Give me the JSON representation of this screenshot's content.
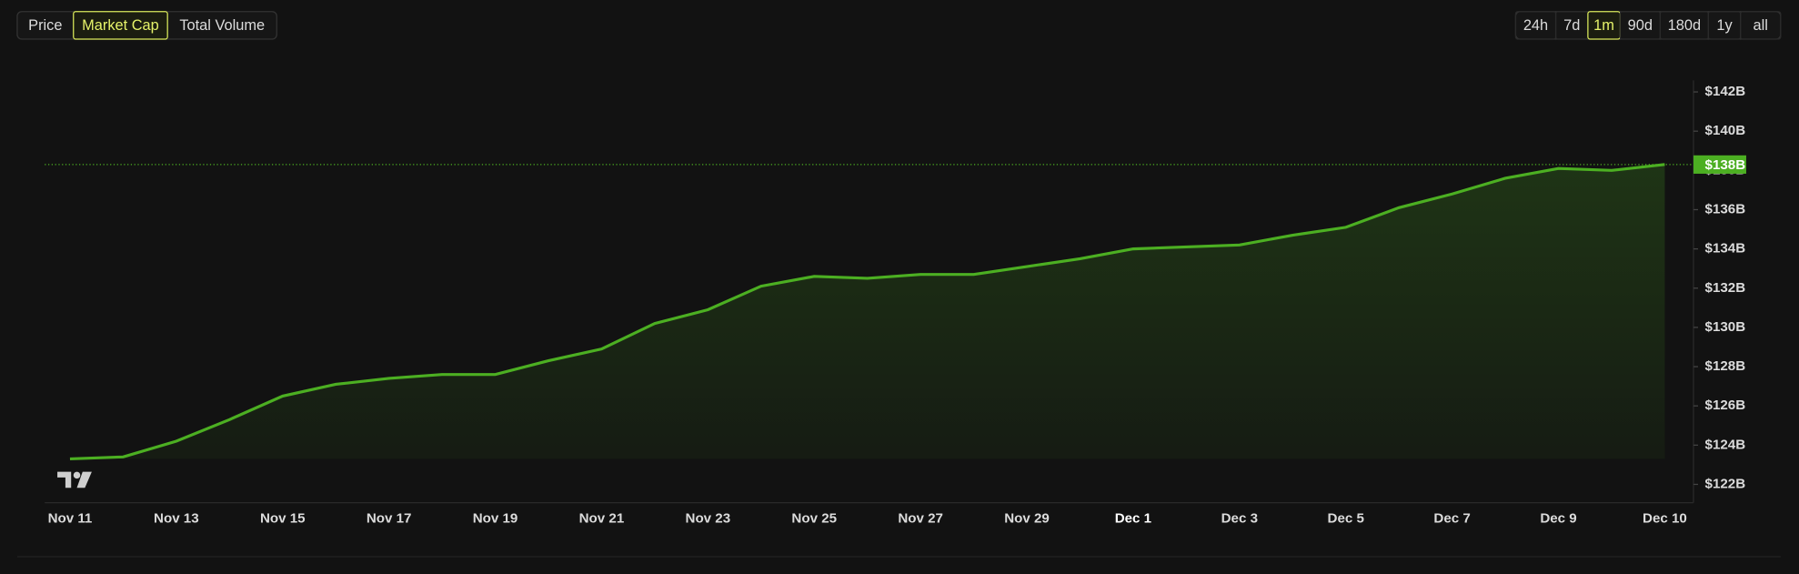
{
  "tabs": [
    "Price",
    "Market Cap",
    "Total Volume"
  ],
  "active_tab": 1,
  "ranges": [
    "24h",
    "7d",
    "1m",
    "90d",
    "180d",
    "1y",
    "all"
  ],
  "active_range": 2,
  "chart_data": {
    "type": "line",
    "categories": [
      "Nov 11",
      null,
      "Nov 13",
      null,
      "Nov 15",
      null,
      "Nov 17",
      null,
      "Nov 19",
      null,
      "Nov 21",
      null,
      "Nov 23",
      null,
      "Nov 25",
      null,
      "Nov 27",
      null,
      "Nov 29",
      null,
      "Dec 1",
      null,
      "Dec 3",
      null,
      "Dec 5",
      null,
      "Dec 7",
      null,
      "Dec 9",
      null,
      "Dec 10"
    ],
    "series": [
      {
        "name": "Market Cap",
        "color": "#4caf22",
        "values": [
          123.3,
          123.4,
          124.2,
          125.3,
          126.5,
          127.1,
          127.4,
          127.6,
          127.6,
          128.3,
          128.9,
          130.2,
          130.9,
          132.1,
          132.6,
          132.5,
          132.7,
          132.7,
          133.1,
          133.5,
          134.0,
          134.1,
          134.2,
          134.7,
          135.1,
          136.1,
          136.8,
          137.6,
          138.1,
          138.0,
          138.3
        ]
      }
    ],
    "last_value_label": "$138B",
    "ylim": [
      122,
      142
    ],
    "yticks": [
      {
        "value": 122,
        "label": "$122B"
      },
      {
        "value": 124,
        "label": "$124B"
      },
      {
        "value": 126,
        "label": "$126B"
      },
      {
        "value": 128,
        "label": "$128B"
      },
      {
        "value": 130,
        "label": "$130B"
      },
      {
        "value": 132,
        "label": "$132B"
      },
      {
        "value": 134,
        "label": "$134B"
      },
      {
        "value": 136,
        "label": "$136B"
      },
      {
        "value": 138,
        "label": "$138B"
      },
      {
        "value": 140,
        "label": "$140B"
      },
      {
        "value": 142,
        "label": "$142B"
      }
    ]
  }
}
